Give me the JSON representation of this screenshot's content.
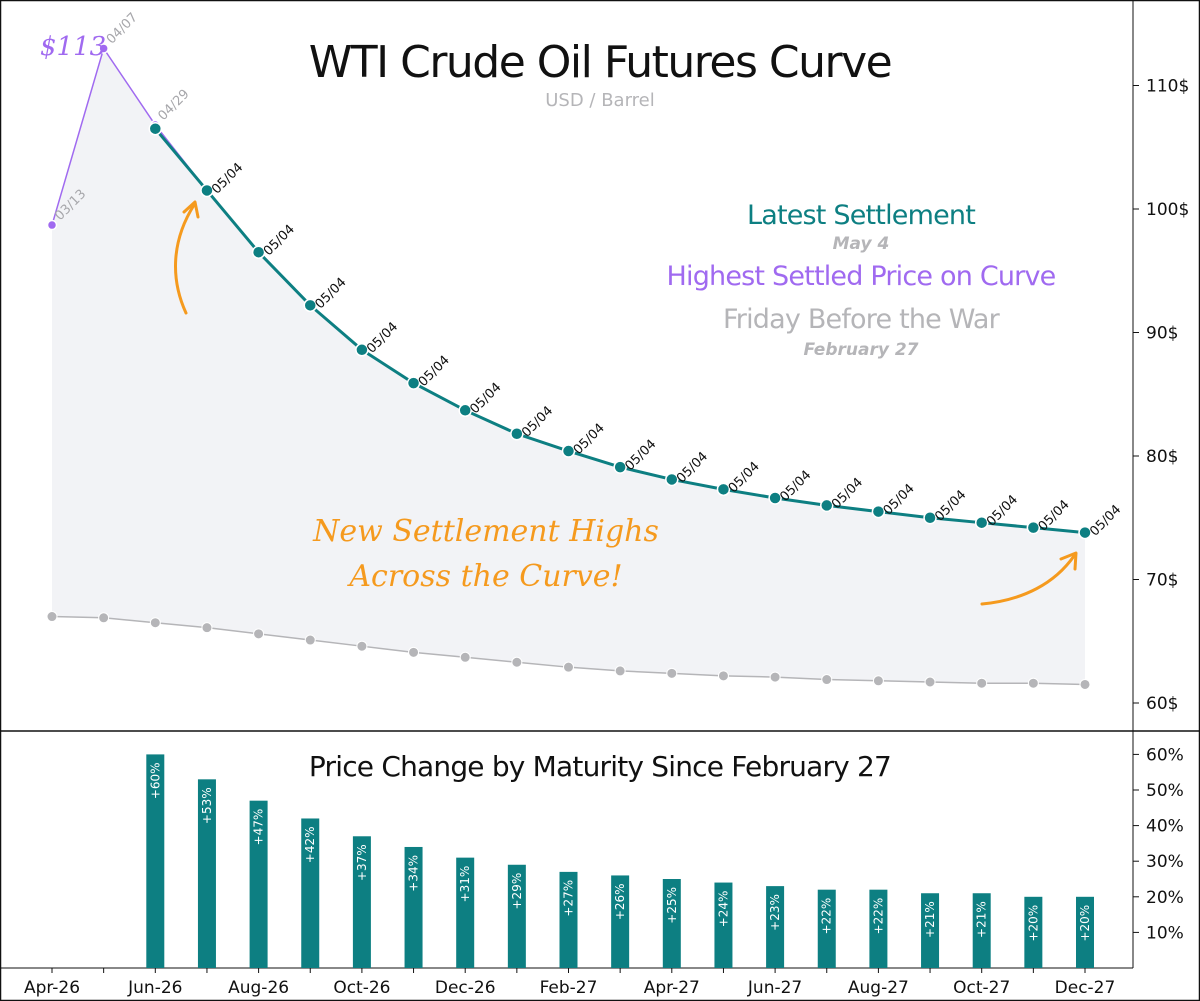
{
  "chart_data": [
    {
      "type": "line",
      "title": "WTI Crude Oil Futures Curve",
      "subtitle": "USD / Barrel",
      "ylim": [
        58,
        117
      ],
      "yticks": [
        60,
        70,
        80,
        90,
        100,
        110
      ],
      "ytick_suffix": "$",
      "grid": false,
      "legend_position": "center-right",
      "legend": {
        "latest": "Latest Settlement",
        "latest_sub": "May 4",
        "highest": "Highest Settled Price on Curve",
        "friday": "Friday Before the War",
        "friday_sub": "February 27"
      },
      "callout": {
        "line1": "New Settlement Highs",
        "line2": "Across the Curve!"
      },
      "peak_label": "$113",
      "x": [
        "Apr-26",
        "May-26",
        "Jun-26",
        "Jul-26",
        "Aug-26",
        "Sep-26",
        "Oct-26",
        "Nov-26",
        "Dec-26",
        "Jan-27",
        "Feb-27",
        "Mar-27",
        "Apr-27",
        "May-27",
        "Jun-27",
        "Jul-27",
        "Aug-27",
        "Sep-27",
        "Oct-27",
        "Nov-27",
        "Dec-27"
      ],
      "series": [
        {
          "name": "Latest Settlement",
          "color": "#0d7f82",
          "x": [
            "Jun-26",
            "Jul-26",
            "Aug-26",
            "Sep-26",
            "Oct-26",
            "Nov-26",
            "Dec-26",
            "Jan-27",
            "Feb-27",
            "Mar-27",
            "Apr-27",
            "May-27",
            "Jun-27",
            "Jul-27",
            "Aug-27",
            "Sep-27",
            "Oct-27",
            "Nov-27",
            "Dec-27"
          ],
          "values": [
            106.5,
            101.5,
            96.5,
            92.2,
            88.6,
            85.9,
            83.7,
            81.8,
            80.4,
            79.1,
            78.1,
            77.3,
            76.6,
            76.0,
            75.5,
            75.0,
            74.6,
            74.2,
            73.8
          ],
          "point_labels": [
            "",
            "05/04",
            "05/04",
            "05/04",
            "05/04",
            "05/04",
            "05/04",
            "05/04",
            "05/04",
            "05/04",
            "05/04",
            "05/04",
            "05/04",
            "05/04",
            "05/04",
            "05/04",
            "05/04",
            "05/04",
            "05/04"
          ]
        },
        {
          "name": "Highest Settled Price on Curve",
          "color": "#a06af0",
          "x": [
            "Apr-26",
            "May-26",
            "Jun-26",
            "Jul-26"
          ],
          "values": [
            98.7,
            113.0,
            106.8,
            101.5
          ],
          "point_labels": [
            "03/13",
            "04/07",
            "04/29",
            ""
          ]
        },
        {
          "name": "Friday Before the War",
          "color": "#b5b5b8",
          "x": [
            "Apr-26",
            "May-26",
            "Jun-26",
            "Jul-26",
            "Aug-26",
            "Sep-26",
            "Oct-26",
            "Nov-26",
            "Dec-26",
            "Jan-27",
            "Feb-27",
            "Mar-27",
            "Apr-27",
            "May-27",
            "Jun-27",
            "Jul-27",
            "Aug-27",
            "Sep-27",
            "Oct-27",
            "Nov-27",
            "Dec-27"
          ],
          "values": [
            67.0,
            66.9,
            66.5,
            66.1,
            65.6,
            65.1,
            64.6,
            64.1,
            63.7,
            63.3,
            62.9,
            62.6,
            62.4,
            62.2,
            62.1,
            61.9,
            61.8,
            61.7,
            61.6,
            61.6,
            61.5
          ]
        }
      ]
    },
    {
      "type": "bar",
      "title": "Price Change by Maturity Since February 27",
      "ylim": [
        0,
        63
      ],
      "yticks": [
        10,
        20,
        30,
        40,
        50,
        60
      ],
      "ytick_suffix": "%",
      "grid": false,
      "bar_color": "#0d7f82",
      "categories": [
        "Jun-26",
        "Jul-26",
        "Aug-26",
        "Sep-26",
        "Oct-26",
        "Nov-26",
        "Dec-26",
        "Jan-27",
        "Feb-27",
        "Mar-27",
        "Apr-27",
        "May-27",
        "Jun-27",
        "Jul-27",
        "Aug-27",
        "Sep-27",
        "Oct-27",
        "Nov-27",
        "Dec-27"
      ],
      "values": [
        60,
        53,
        47,
        42,
        37,
        34,
        31,
        29,
        27,
        26,
        25,
        24,
        23,
        22,
        22,
        21,
        21,
        20,
        20
      ],
      "labels": [
        "+60%",
        "+53%",
        "+47%",
        "+42%",
        "+37%",
        "+34%",
        "+31%",
        "+29%",
        "+27%",
        "+26%",
        "+25%",
        "+24%",
        "+23%",
        "+22%",
        "+22%",
        "+21%",
        "+21%",
        "+20%",
        "+20%"
      ],
      "xticks": [
        "Apr-26",
        "Jun-26",
        "Aug-26",
        "Oct-26",
        "Dec-26",
        "Feb-27",
        "Apr-27",
        "Jun-27",
        "Aug-27",
        "Oct-27",
        "Dec-27"
      ]
    }
  ]
}
